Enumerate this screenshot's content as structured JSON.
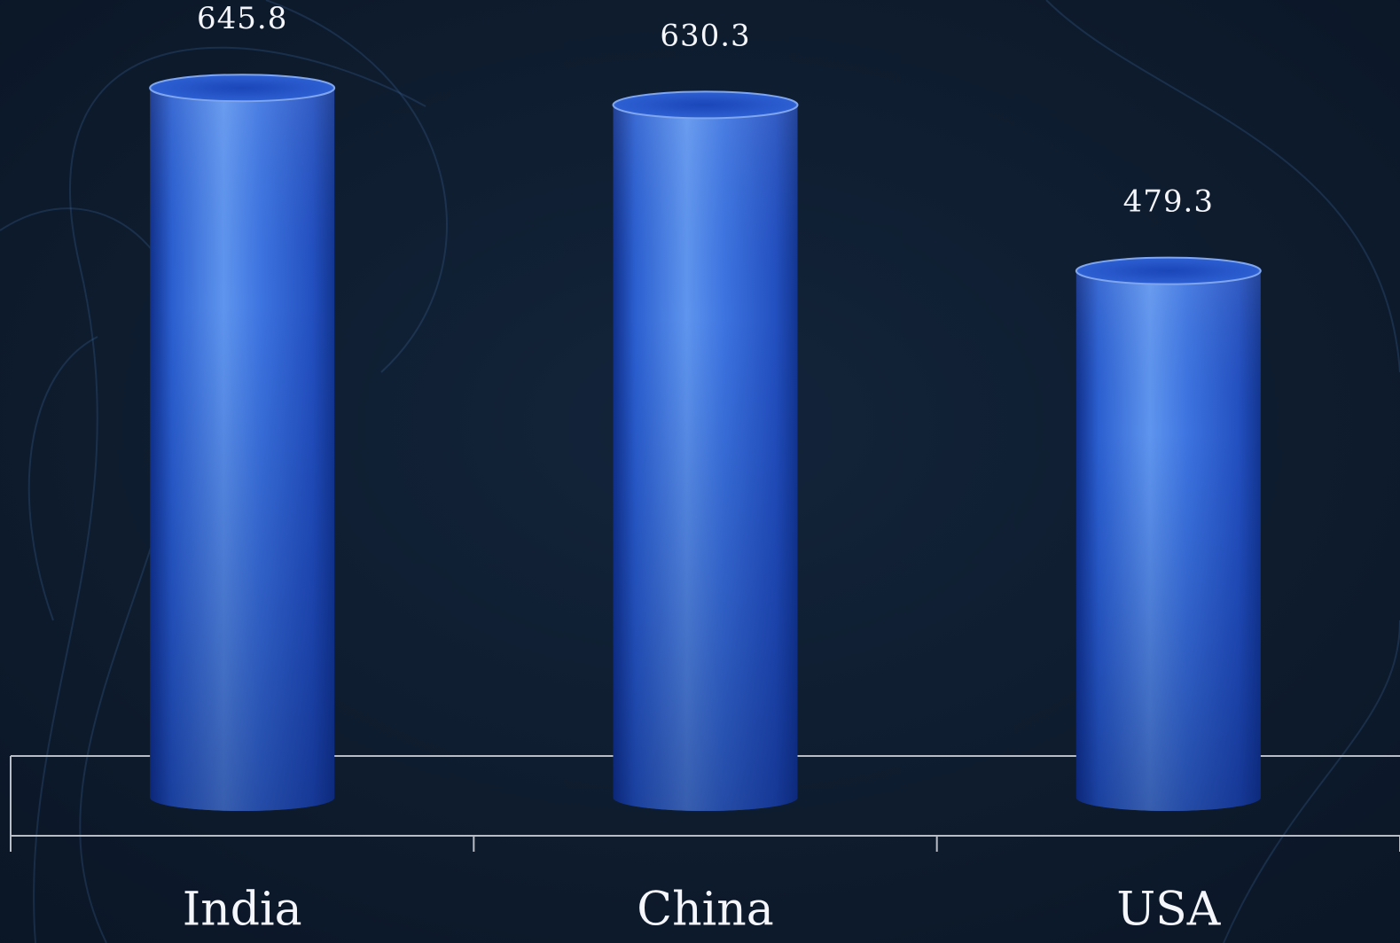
{
  "chart_data": {
    "type": "bar",
    "categories": [
      "India",
      "China",
      "USA"
    ],
    "values": [
      645.8,
      630.3,
      479.3
    ],
    "color": "#2f63d8"
  }
}
